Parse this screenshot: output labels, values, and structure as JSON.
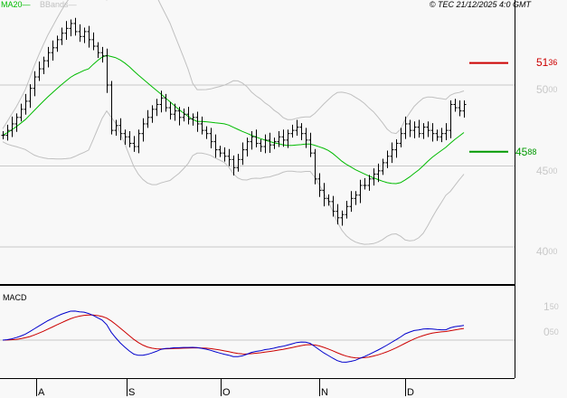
{
  "legend": {
    "ma_label": "MA20",
    "bb_label": "BBands",
    "ma_color": "#00bb00",
    "bb_color": "#c0c0c0"
  },
  "timestamp": "© TEC 21/12/2025 4:0 GMT",
  "macd_label": "MACD",
  "colors": {
    "macd": "#0000cc",
    "signal": "#cc0000",
    "resistance": "#cc0000",
    "support": "#009900",
    "grid": "#c8c8c8"
  },
  "chart_data": {
    "type": "ohlc",
    "price_axis": {
      "ylim": [
        3830,
        5520
      ],
      "ticks": [
        {
          "value": 5000,
          "int": "50",
          "dec": "00"
        },
        {
          "value": 4500,
          "int": "45",
          "dec": "00"
        },
        {
          "value": 4000,
          "int": "40",
          "dec": "00"
        }
      ]
    },
    "levels": [
      {
        "name": "resistance",
        "value": 5136,
        "int": "51",
        "dec": "36"
      },
      {
        "name": "support",
        "value": 4588,
        "int": "45",
        "dec": "88"
      }
    ],
    "months": [
      "A",
      "S",
      "O",
      "N",
      "D"
    ],
    "month_start_index": [
      8,
      28,
      49,
      71,
      90
    ],
    "closes": [
      4690,
      4720,
      4760,
      4800,
      4850,
      4900,
      4980,
      5050,
      5100,
      5150,
      5200,
      5230,
      5280,
      5320,
      5350,
      5380,
      5330,
      5300,
      5330,
      5280,
      5240,
      5200,
      5180,
      5000,
      4720,
      4750,
      4700,
      4680,
      4640,
      4620,
      4700,
      4760,
      4800,
      4850,
      4880,
      4920,
      4860,
      4820,
      4840,
      4800,
      4820,
      4790,
      4800,
      4760,
      4720,
      4700,
      4650,
      4600,
      4580,
      4560,
      4540,
      4490,
      4540,
      4600,
      4650,
      4680,
      4640,
      4620,
      4660,
      4630,
      4650,
      4680,
      4660,
      4700,
      4720,
      4740,
      4700,
      4660,
      4580,
      4420,
      4350,
      4300,
      4280,
      4220,
      4180,
      4200,
      4250,
      4300,
      4320,
      4380,
      4380,
      4420,
      4450,
      4470,
      4520,
      4560,
      4600,
      4640,
      4700,
      4760,
      4720,
      4740,
      4700,
      4740,
      4720,
      4700,
      4680,
      4700,
      4720,
      4880,
      4860,
      4840,
      4880
    ],
    "indicators": [
      "MA20",
      "BBands",
      "MACD"
    ],
    "macd_axis": {
      "ticks": [
        {
          "value": 150,
          "int": "1",
          "dec": "50"
        },
        {
          "value": 50,
          "int": "0",
          "dec": "50"
        }
      ]
    }
  }
}
